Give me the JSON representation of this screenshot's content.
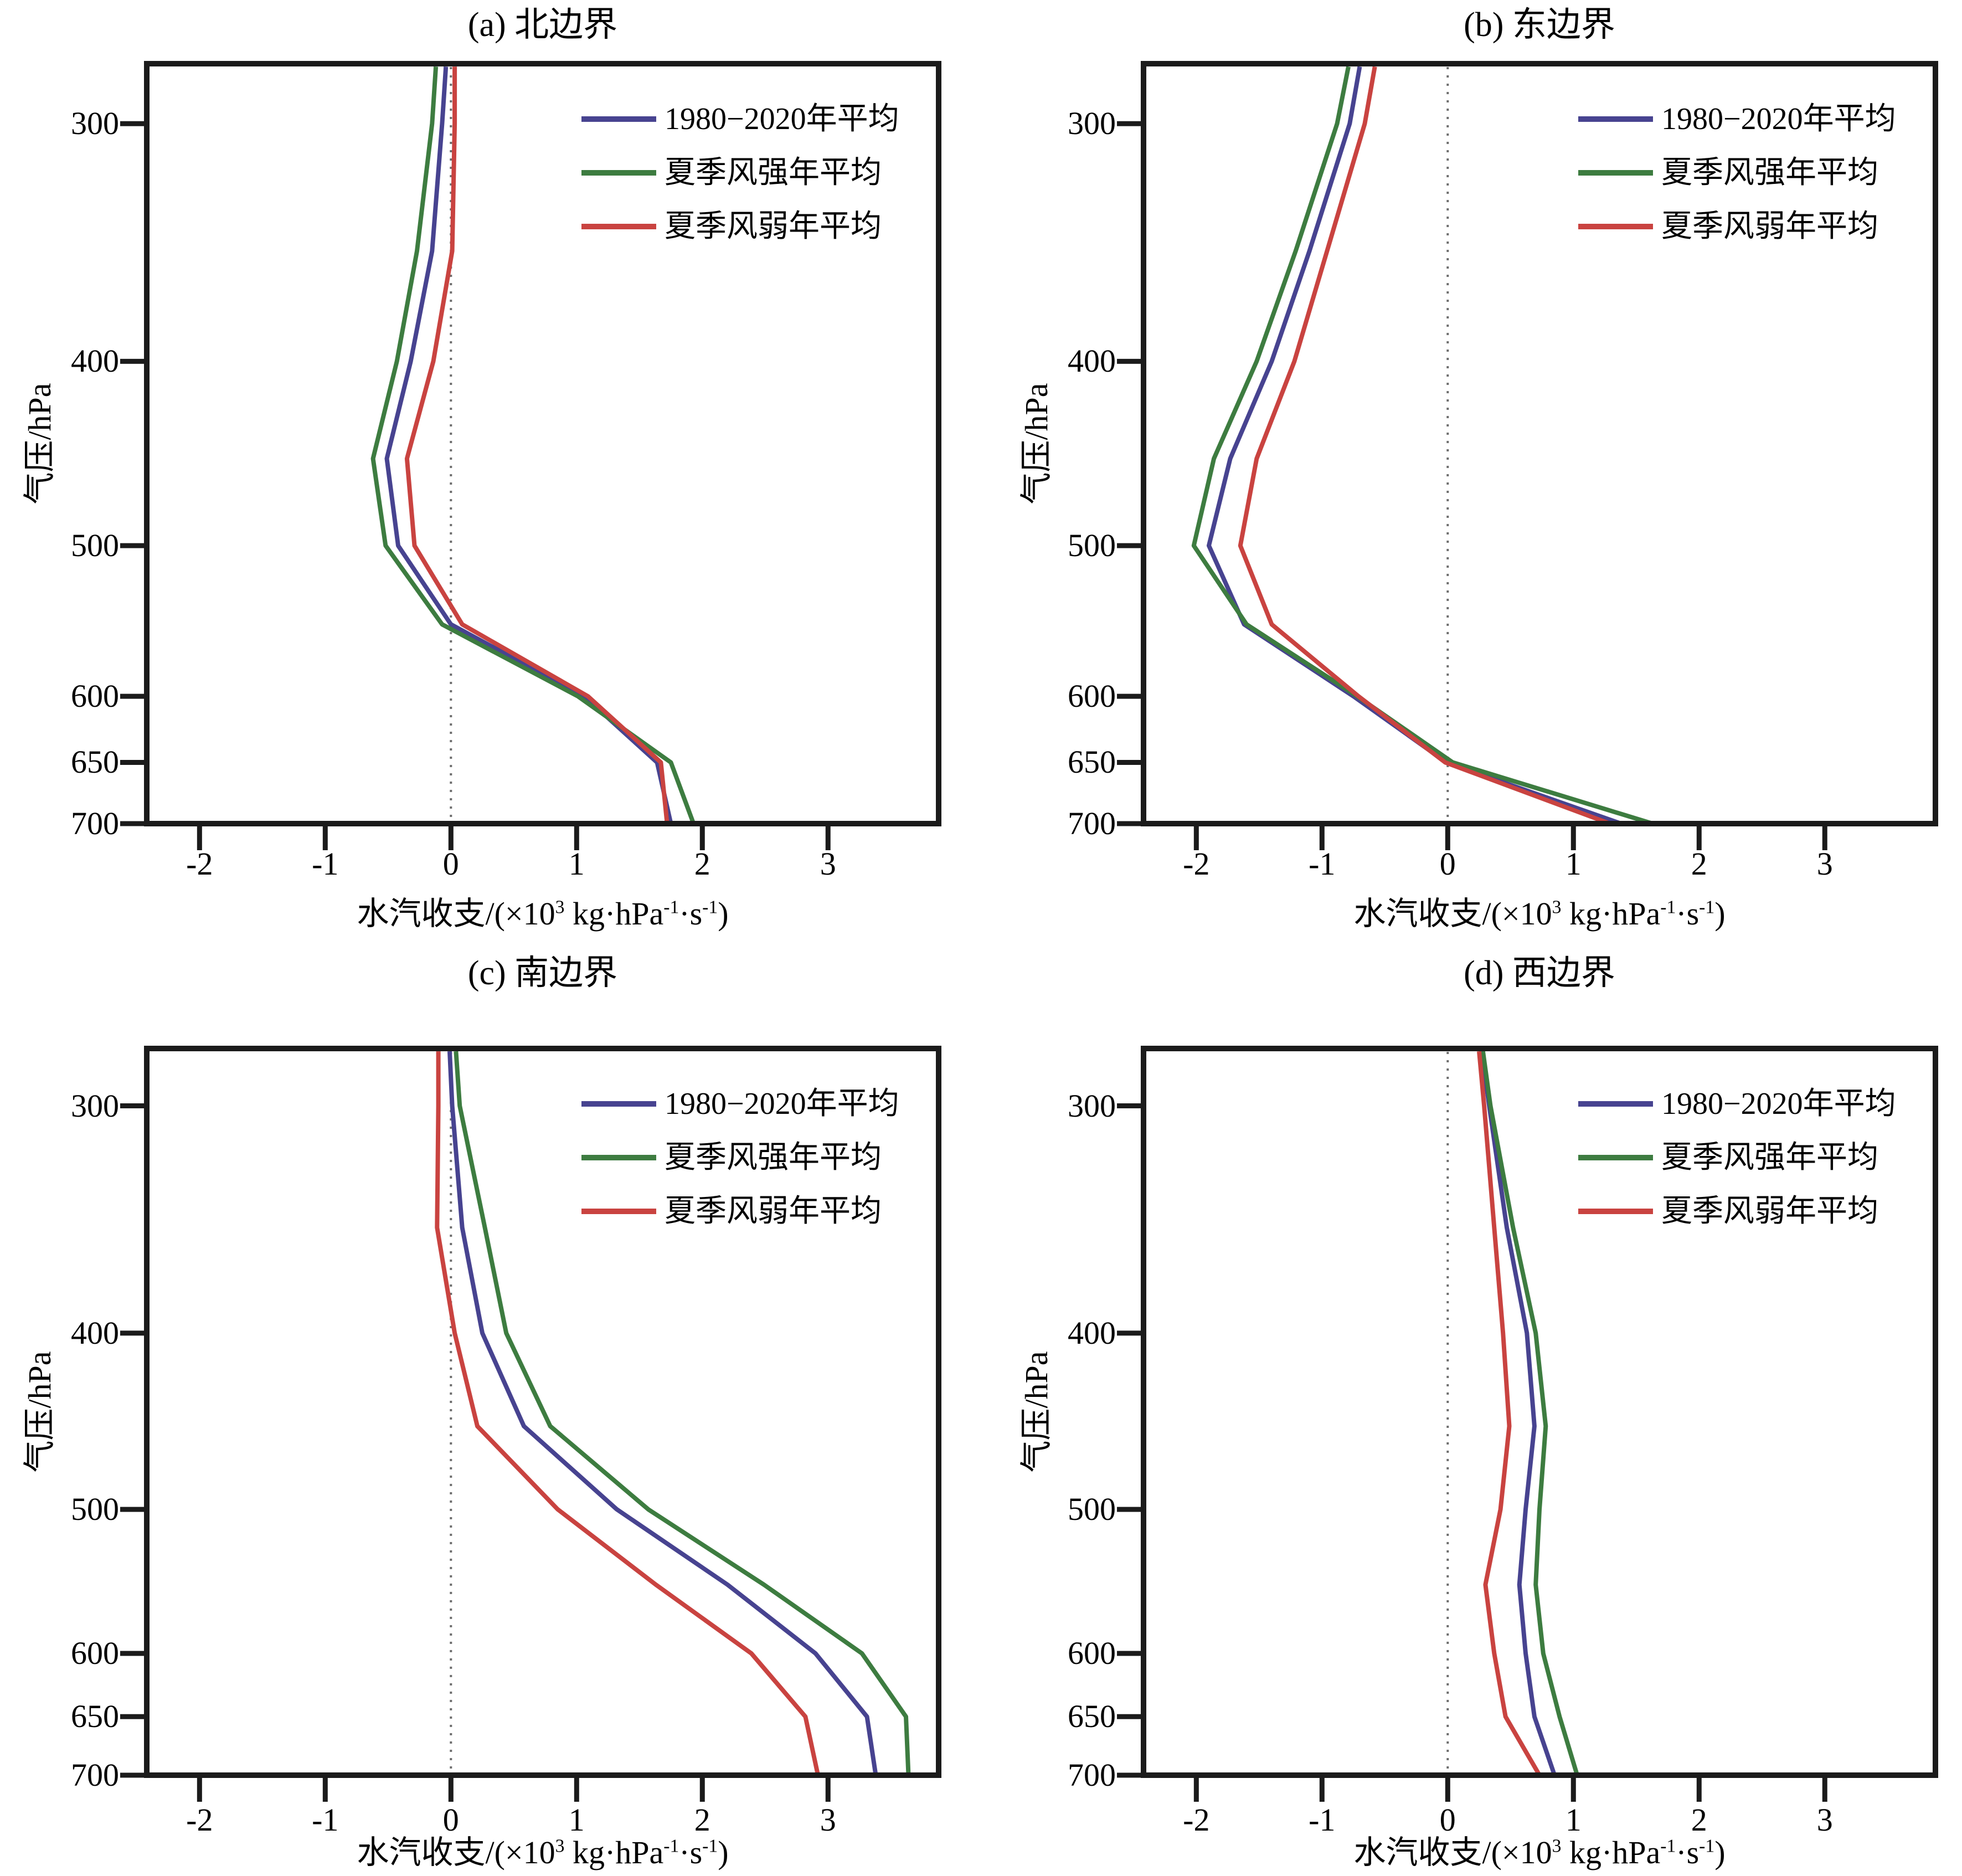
{
  "figure": {
    "background": "#ffffff",
    "axis_color": "#1b1b1b",
    "zero_line_color": "#6f6f6f",
    "legend": [
      {
        "id": "mean",
        "label": "1980−2020年平均",
        "color": "#474390"
      },
      {
        "id": "strong",
        "label": "夏季风强年平均",
        "color": "#3d7c40"
      },
      {
        "id": "weak",
        "label": "夏季风弱年平均",
        "color": "#c94340"
      }
    ]
  },
  "chart_data": [
    {
      "type": "line",
      "panel": "a",
      "title": "(a) 北边界",
      "xlabel": "水汽收支/(×10³ kg·hPa⁻¹·s⁻¹)",
      "xlabel_parts": [
        {
          "t": "水汽收支/(×10",
          "sup": false
        },
        {
          "t": "3",
          "sup": true
        },
        {
          "t": " kg·hPa",
          "sup": false
        },
        {
          "t": "-1",
          "sup": true
        },
        {
          "t": "·s",
          "sup": false
        },
        {
          "t": "-1",
          "sup": true
        },
        {
          "t": ")",
          "sup": false
        }
      ],
      "ylabel": "气压/hPa",
      "x_ticks": [
        -2,
        -1,
        0,
        1,
        2,
        3
      ],
      "x_tick_labels": [
        "-2",
        "-1",
        "0",
        "1",
        "2",
        "3"
      ],
      "y_ticks": [
        300,
        400,
        500,
        600,
        650,
        700
      ],
      "xlim": [
        -2.42,
        3.88
      ],
      "ylim": [
        279,
        700
      ],
      "y_scale": "log",
      "zero_line": true,
      "pressure_levels": [
        280,
        300,
        350,
        400,
        450,
        500,
        550,
        600,
        650,
        700
      ],
      "series": [
        {
          "name": "1980−2020年平均",
          "color": "#474390",
          "values": [
            -0.04,
            -0.07,
            -0.15,
            -0.32,
            -0.51,
            -0.42,
            0.0,
            1.06,
            1.64,
            1.75
          ]
        },
        {
          "name": "夏季风强年平均",
          "color": "#3d7c40",
          "values": [
            -0.12,
            -0.15,
            -0.27,
            -0.43,
            -0.62,
            -0.52,
            -0.07,
            1.01,
            1.75,
            1.93
          ]
        },
        {
          "name": "夏季风弱年平均",
          "color": "#c94340",
          "values": [
            0.03,
            0.03,
            0.01,
            -0.14,
            -0.35,
            -0.29,
            0.09,
            1.09,
            1.67,
            1.72
          ]
        }
      ]
    },
    {
      "type": "line",
      "panel": "b",
      "title": "(b) 东边界",
      "xlabel": "水汽收支/(×10³ kg·hPa⁻¹·s⁻¹)",
      "xlabel_parts": [
        {
          "t": "水汽收支/(×10",
          "sup": false
        },
        {
          "t": "3",
          "sup": true
        },
        {
          "t": " kg·hPa",
          "sup": false
        },
        {
          "t": "-1",
          "sup": true
        },
        {
          "t": "·s",
          "sup": false
        },
        {
          "t": "-1",
          "sup": true
        },
        {
          "t": ")",
          "sup": false
        }
      ],
      "ylabel": "气压/hPa",
      "x_ticks": [
        -2,
        -1,
        0,
        1,
        2,
        3
      ],
      "x_tick_labels": [
        "-2",
        "-1",
        "0",
        "1",
        "2",
        "3"
      ],
      "y_ticks": [
        300,
        400,
        500,
        600,
        650,
        700
      ],
      "xlim": [
        -2.42,
        3.88
      ],
      "ylim": [
        279,
        700
      ],
      "y_scale": "log",
      "zero_line": true,
      "pressure_levels": [
        280,
        300,
        350,
        400,
        450,
        500,
        550,
        600,
        650,
        700
      ],
      "series": [
        {
          "name": "1980−2020年平均",
          "color": "#474390",
          "values": [
            -0.7,
            -0.78,
            -1.1,
            -1.4,
            -1.73,
            -1.9,
            -1.62,
            -0.75,
            -0.01,
            1.38
          ]
        },
        {
          "name": "夏季风强年平均",
          "color": "#3d7c40",
          "values": [
            -0.79,
            -0.88,
            -1.21,
            -1.52,
            -1.86,
            -2.02,
            -1.6,
            -0.72,
            0.04,
            1.63
          ]
        },
        {
          "name": "夏季风弱年平均",
          "color": "#c94340",
          "values": [
            -0.58,
            -0.66,
            -0.96,
            -1.22,
            -1.52,
            -1.65,
            -1.4,
            -0.71,
            -0.02,
            1.29
          ]
        }
      ]
    },
    {
      "type": "line",
      "panel": "c",
      "title": "(c) 南边界",
      "xlabel": "水汽收支/(×10³ kg·hPa⁻¹·s⁻¹)",
      "xlabel_parts": [
        {
          "t": "水汽收支/(×10",
          "sup": false
        },
        {
          "t": "3",
          "sup": true
        },
        {
          "t": " kg·hPa",
          "sup": false
        },
        {
          "t": "-1",
          "sup": true
        },
        {
          "t": "·s",
          "sup": false
        },
        {
          "t": "-1",
          "sup": true
        },
        {
          "t": ")",
          "sup": false
        }
      ],
      "ylabel": "气压/hPa",
      "x_ticks": [
        -2,
        -1,
        0,
        1,
        2,
        3
      ],
      "x_tick_labels": [
        "-2",
        "-1",
        "0",
        "1",
        "2",
        "3"
      ],
      "y_ticks": [
        300,
        400,
        500,
        600,
        650,
        700
      ],
      "xlim": [
        -2.42,
        3.88
      ],
      "ylim": [
        279,
        700
      ],
      "y_scale": "log",
      "zero_line": true,
      "pressure_levels": [
        280,
        300,
        350,
        400,
        450,
        500,
        550,
        600,
        650,
        700
      ],
      "series": [
        {
          "name": "1980−2020年平均",
          "color": "#474390",
          "values": [
            -0.01,
            0.01,
            0.09,
            0.25,
            0.58,
            1.32,
            2.2,
            2.9,
            3.31,
            3.38
          ]
        },
        {
          "name": "夏季风强年平均",
          "color": "#3d7c40",
          "values": [
            0.04,
            0.07,
            0.27,
            0.44,
            0.79,
            1.57,
            2.49,
            3.27,
            3.62,
            3.64
          ]
        },
        {
          "name": "夏季风弱年平均",
          "color": "#c94340",
          "values": [
            -0.1,
            -0.1,
            -0.11,
            0.03,
            0.21,
            0.85,
            1.63,
            2.39,
            2.82,
            2.92
          ]
        }
      ]
    },
    {
      "type": "line",
      "panel": "d",
      "title": "(d) 西边界",
      "xlabel": "水汽收支/(×10³ kg·hPa⁻¹·s⁻¹)",
      "xlabel_parts": [
        {
          "t": "水汽收支/(×10",
          "sup": false
        },
        {
          "t": "3",
          "sup": true
        },
        {
          "t": " kg·hPa",
          "sup": false
        },
        {
          "t": "-1",
          "sup": true
        },
        {
          "t": "·s",
          "sup": false
        },
        {
          "t": "-1",
          "sup": true
        },
        {
          "t": ")",
          "sup": false
        }
      ],
      "ylabel": "气压/hPa",
      "x_ticks": [
        -2,
        -1,
        0,
        1,
        2,
        3
      ],
      "x_tick_labels": [
        "-2",
        "-1",
        "0",
        "1",
        "2",
        "3"
      ],
      "y_ticks": [
        300,
        400,
        500,
        600,
        650,
        700
      ],
      "xlim": [
        -2.42,
        3.88
      ],
      "ylim": [
        279,
        700
      ],
      "y_scale": "log",
      "zero_line": true,
      "pressure_levels": [
        280,
        300,
        350,
        400,
        450,
        500,
        550,
        600,
        650,
        700
      ],
      "series": [
        {
          "name": "1980−2020年平均",
          "color": "#474390",
          "values": [
            0.27,
            0.33,
            0.47,
            0.63,
            0.69,
            0.62,
            0.57,
            0.62,
            0.69,
            0.85
          ]
        },
        {
          "name": "夏季风强年平均",
          "color": "#3d7c40",
          "values": [
            0.28,
            0.34,
            0.52,
            0.7,
            0.78,
            0.73,
            0.7,
            0.76,
            0.89,
            1.03
          ]
        },
        {
          "name": "夏季风弱年平均",
          "color": "#c94340",
          "values": [
            0.25,
            0.29,
            0.37,
            0.44,
            0.49,
            0.42,
            0.3,
            0.37,
            0.46,
            0.73
          ]
        }
      ]
    }
  ]
}
